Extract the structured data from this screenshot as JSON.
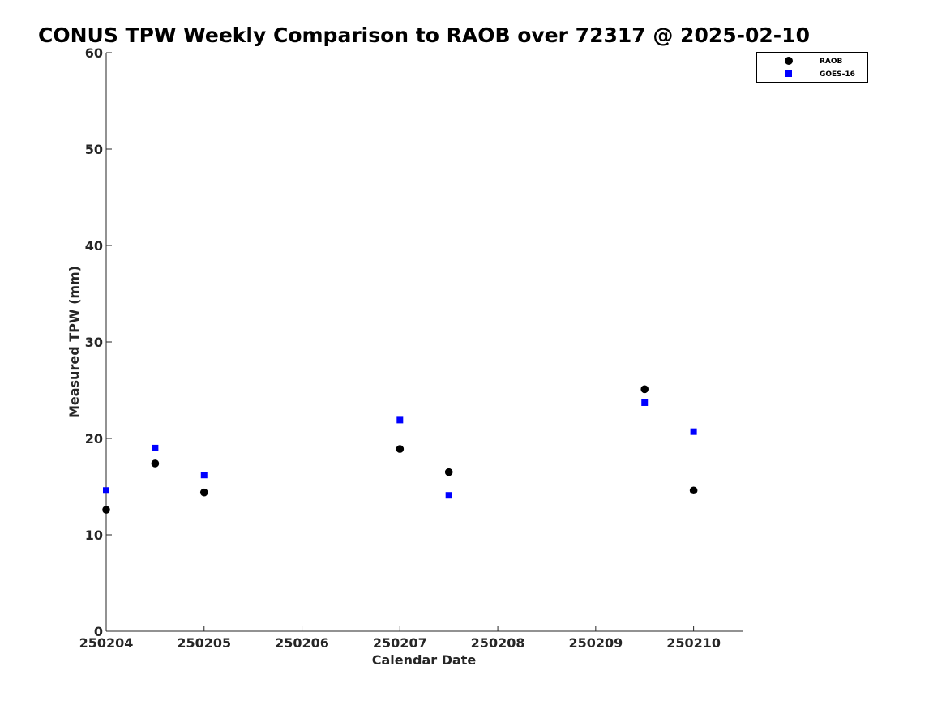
{
  "chart_data": {
    "type": "scatter",
    "title": "CONUS TPW Weekly Comparison to RAOB over 72317 @ 2025-02-10",
    "xlabel": "Calendar Date",
    "ylabel": "Measured TPW (mm)",
    "xlim": [
      250204,
      250210.5
    ],
    "ylim": [
      0,
      60
    ],
    "x_ticks": [
      250204,
      250205,
      250206,
      250207,
      250208,
      250209,
      250210
    ],
    "x_tick_labels": [
      "250204",
      "250205",
      "250206",
      "250207",
      "250208",
      "250209",
      "250210"
    ],
    "y_ticks": [
      0,
      10,
      20,
      30,
      40,
      50,
      60
    ],
    "y_tick_labels": [
      "0",
      "10",
      "20",
      "30",
      "40",
      "50",
      "60"
    ],
    "grid": false,
    "legend_position": "top-right",
    "series": [
      {
        "name": "RAOB",
        "marker": "circle",
        "color": "#000000",
        "x": [
          250204,
          250204.5,
          250205,
          250207,
          250207.5,
          250209.5,
          250210
        ],
        "y": [
          12.6,
          17.4,
          14.4,
          18.9,
          16.5,
          25.1,
          14.6
        ]
      },
      {
        "name": "GOES-16",
        "marker": "square",
        "color": "#0000ff",
        "x": [
          250204,
          250204.5,
          250205,
          250207,
          250207.5,
          250209.5,
          250210
        ],
        "y": [
          14.6,
          19.0,
          16.2,
          21.9,
          14.1,
          23.7,
          20.7
        ]
      }
    ]
  }
}
